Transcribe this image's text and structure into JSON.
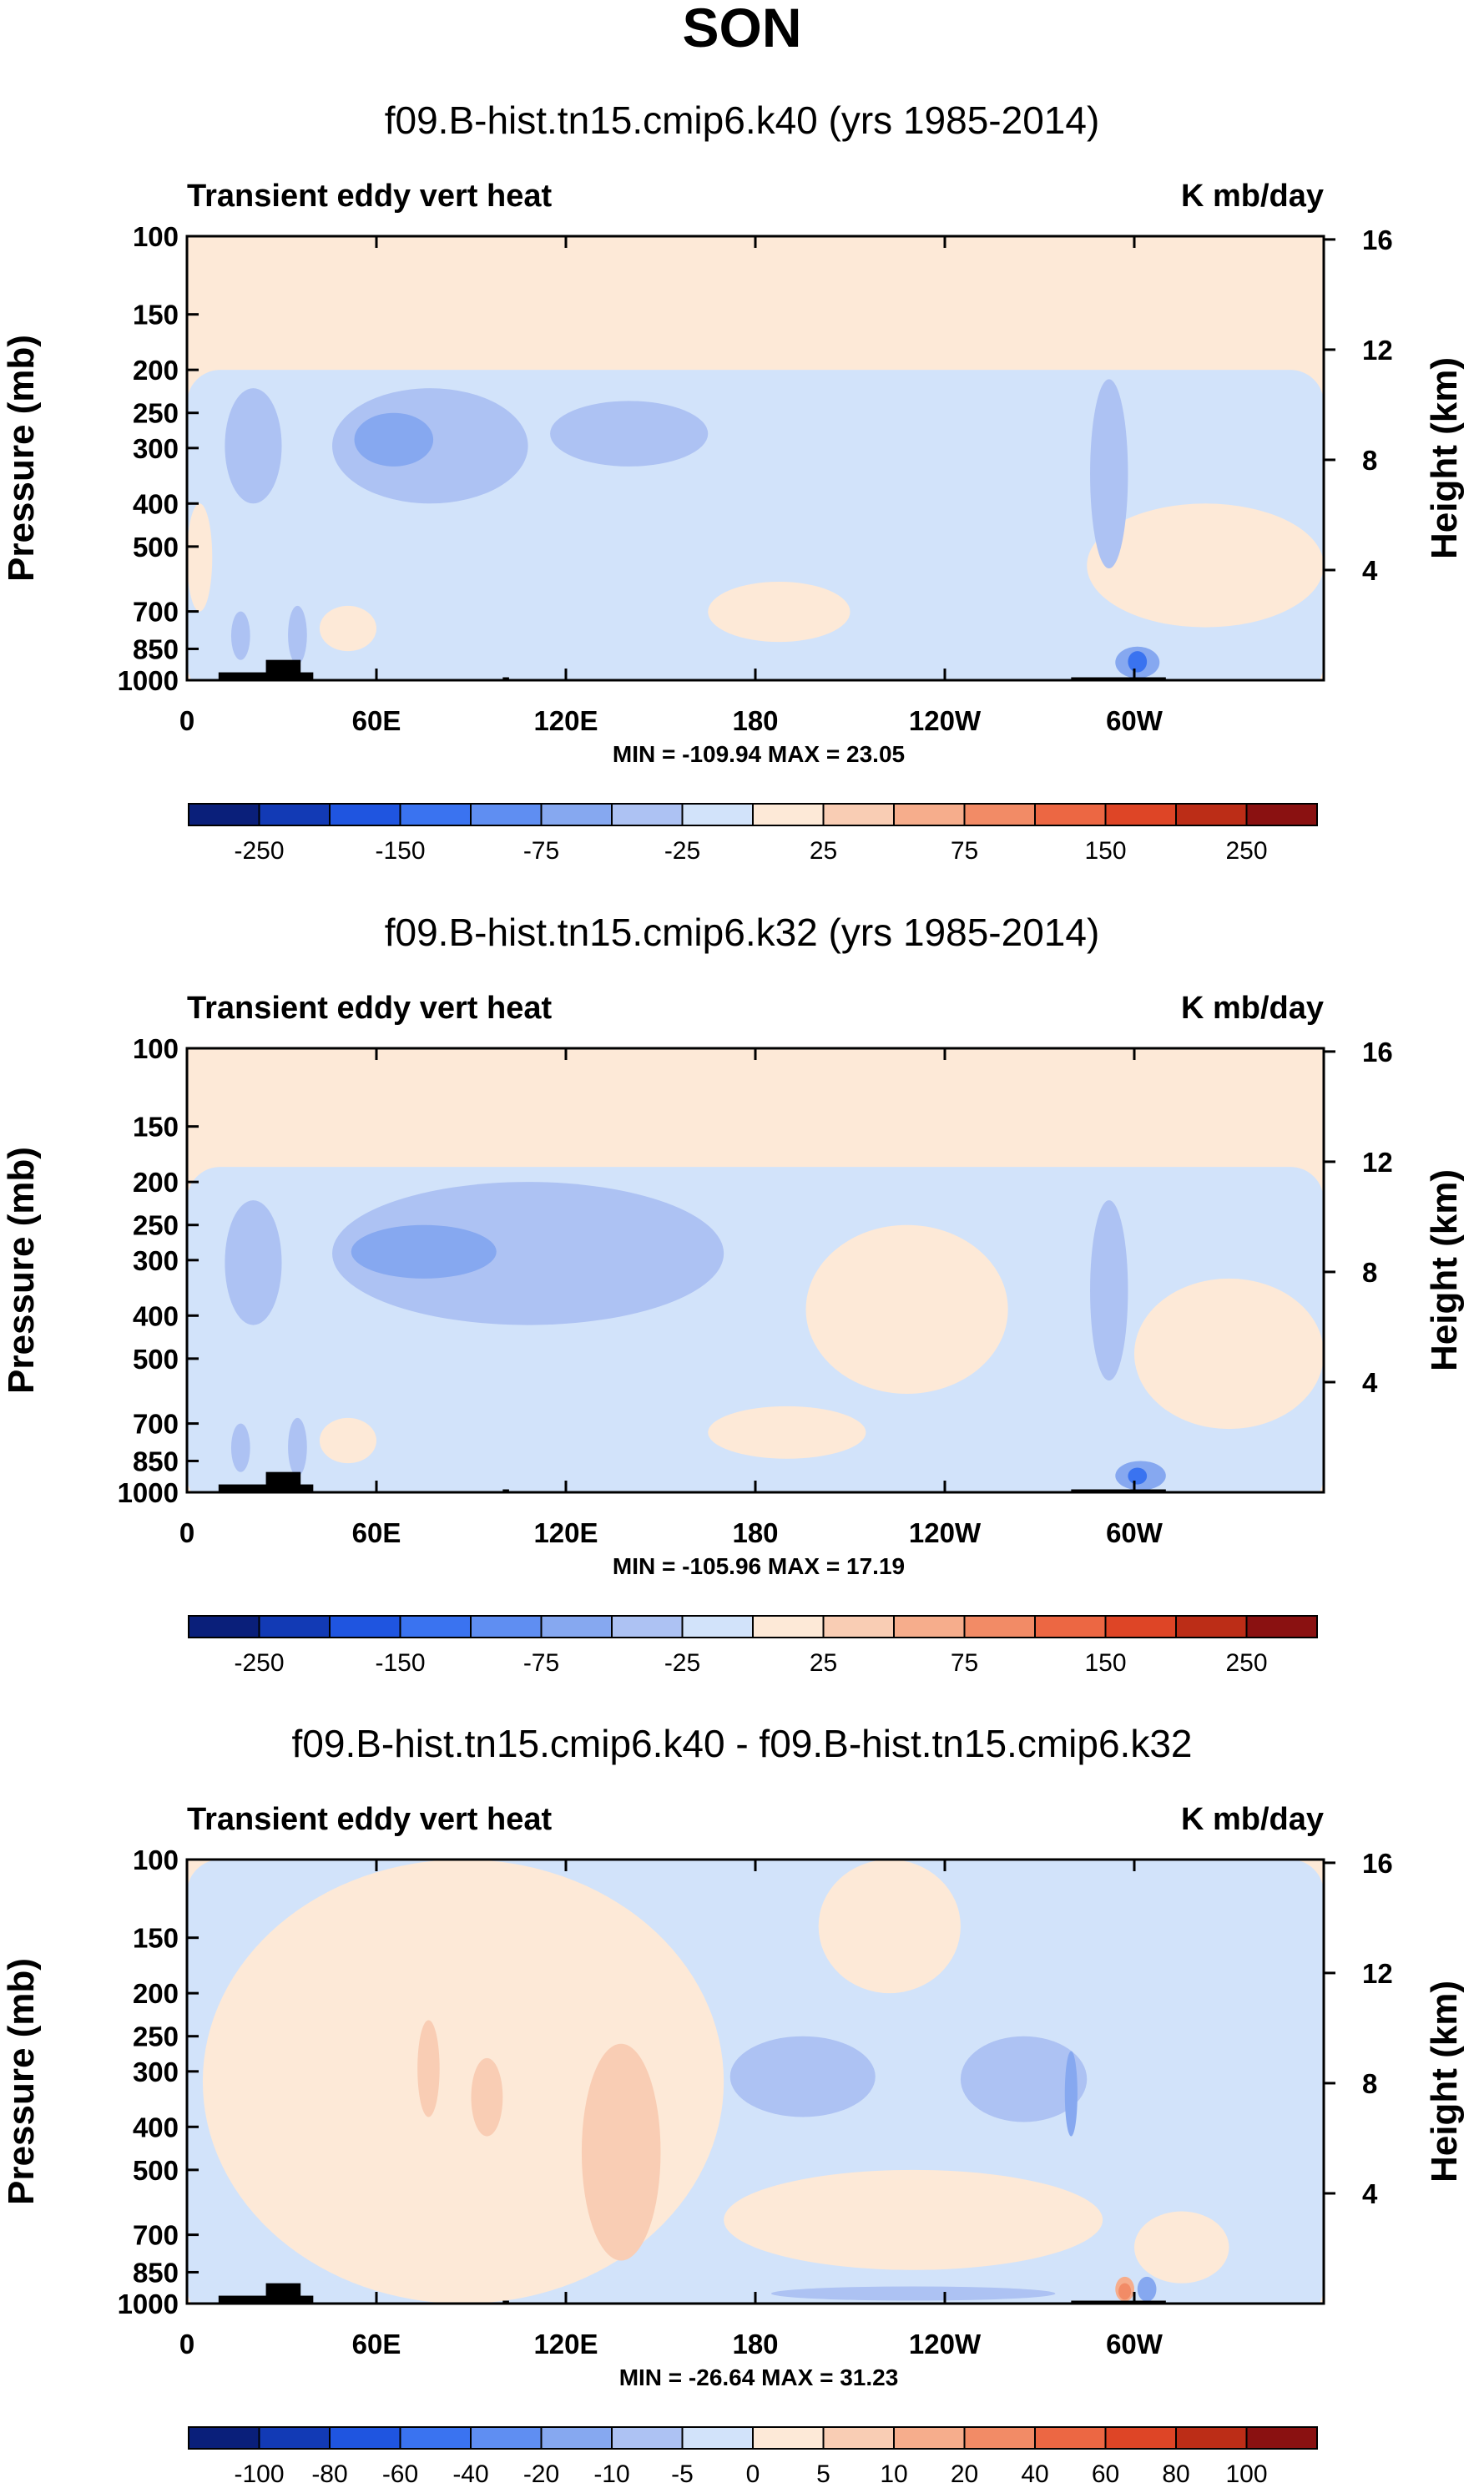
{
  "page_title": "SON",
  "colors": {
    "ax": "#000000",
    "land": "#000000",
    "default_bg": "#fde9d7"
  },
  "chart_data": [
    {
      "type": "contour",
      "title": "f09.B-hist.tn15.cmip6.k40 (yrs 1985-2014)",
      "left_label": "Transient eddy vert heat",
      "right_label": "K mb/day",
      "ylabel": "Pressure (mb)",
      "ylabel_right": "Height (km)",
      "yticks": [
        "100",
        "150",
        "200",
        "250",
        "300",
        "400",
        "500",
        "700",
        "850",
        "1000"
      ],
      "yticks_right": [
        "16",
        "12",
        "8",
        "4"
      ],
      "xticks": [
        "0",
        "60E",
        "120E",
        "180",
        "120W",
        "60W"
      ],
      "xlim": [
        0,
        360
      ],
      "stats": "MIN = -109.94  MAX =  23.05",
      "min": -109.94,
      "max": 23.05,
      "colorbar": {
        "labels": [
          "-250",
          "-150",
          "-75",
          "-25",
          "25",
          "75",
          "150",
          "250"
        ],
        "colors": [
          "#0a1f7a",
          "#123ab5",
          "#1f55e0",
          "#3a73f0",
          "#5f8ef2",
          "#86a8f0",
          "#adc2f3",
          "#d2e3fa",
          "#fde9d7",
          "#f9cdb4",
          "#f6ad8c",
          "#f28b66",
          "#ec6743",
          "#de4526",
          "#bc2d17",
          "#8a1111"
        ]
      },
      "regions": [
        {
          "cls": 7,
          "x": [
            0,
            360
          ],
          "p": [
            200,
            1000
          ]
        },
        {
          "cls": 8,
          "x": [
            0,
            8
          ],
          "p": [
            400,
            700
          ]
        },
        {
          "cls": 8,
          "x": [
            165,
            210
          ],
          "p": [
            600,
            820
          ]
        },
        {
          "cls": 8,
          "x": [
            285,
            360
          ],
          "p": [
            400,
            760
          ]
        },
        {
          "cls": 8,
          "x": [
            42,
            60
          ],
          "p": [
            680,
            860
          ]
        },
        {
          "cls": 6,
          "x": [
            12,
            30
          ],
          "p": [
            220,
            400
          ]
        },
        {
          "cls": 6,
          "x": [
            46,
            108
          ],
          "p": [
            220,
            400
          ]
        },
        {
          "cls": 6,
          "x": [
            115,
            165
          ],
          "p": [
            235,
            330
          ]
        },
        {
          "cls": 6,
          "x": [
            286,
            298
          ],
          "p": [
            210,
            560
          ]
        },
        {
          "cls": 5,
          "x": [
            53,
            78
          ],
          "p": [
            250,
            330
          ]
        },
        {
          "cls": 6,
          "x": [
            32,
            38
          ],
          "p": [
            680,
            920
          ]
        },
        {
          "cls": 6,
          "x": [
            14,
            20
          ],
          "p": [
            700,
            900
          ]
        },
        {
          "cls": 5,
          "x": [
            294,
            308
          ],
          "p": [
            840,
            990
          ]
        },
        {
          "cls": 3,
          "x": [
            298,
            304
          ],
          "p": [
            860,
            960
          ]
        }
      ],
      "land": [
        {
          "x": [
            10,
            40
          ],
          "p": [
            960,
            1000
          ]
        },
        {
          "x": [
            25,
            36
          ],
          "p": [
            900,
            1000
          ]
        },
        {
          "x": [
            100,
            102
          ],
          "p": [
            985,
            1000
          ]
        },
        {
          "x": [
            280,
            310
          ],
          "p": [
            985,
            1000
          ]
        }
      ]
    },
    {
      "type": "contour",
      "title": "f09.B-hist.tn15.cmip6.k32 (yrs 1985-2014)",
      "left_label": "Transient eddy vert heat",
      "right_label": "K mb/day",
      "ylabel": "Pressure (mb)",
      "ylabel_right": "Height (km)",
      "yticks": [
        "100",
        "150",
        "200",
        "250",
        "300",
        "400",
        "500",
        "700",
        "850",
        "1000"
      ],
      "yticks_right": [
        "16",
        "12",
        "8",
        "4"
      ],
      "xticks": [
        "0",
        "60E",
        "120E",
        "180",
        "120W",
        "60W"
      ],
      "xlim": [
        0,
        360
      ],
      "stats": "MIN = -105.96  MAX =  17.19",
      "min": -105.96,
      "max": 17.19,
      "colorbar": {
        "labels": [
          "-250",
          "-150",
          "-75",
          "-25",
          "25",
          "75",
          "150",
          "250"
        ],
        "colors": [
          "#0a1f7a",
          "#123ab5",
          "#1f55e0",
          "#3a73f0",
          "#5f8ef2",
          "#86a8f0",
          "#adc2f3",
          "#d2e3fa",
          "#fde9d7",
          "#f9cdb4",
          "#f6ad8c",
          "#f28b66",
          "#ec6743",
          "#de4526",
          "#bc2d17",
          "#8a1111"
        ]
      },
      "regions": [
        {
          "cls": 7,
          "x": [
            0,
            360
          ],
          "p": [
            185,
            1000
          ]
        },
        {
          "cls": 8,
          "x": [
            196,
            260
          ],
          "p": [
            250,
            600
          ]
        },
        {
          "cls": 8,
          "x": [
            165,
            215
          ],
          "p": [
            640,
            840
          ]
        },
        {
          "cls": 8,
          "x": [
            300,
            360
          ],
          "p": [
            330,
            720
          ]
        },
        {
          "cls": 8,
          "x": [
            42,
            60
          ],
          "p": [
            680,
            860
          ]
        },
        {
          "cls": 6,
          "x": [
            12,
            30
          ],
          "p": [
            220,
            420
          ]
        },
        {
          "cls": 6,
          "x": [
            46,
            170
          ],
          "p": [
            200,
            420
          ]
        },
        {
          "cls": 5,
          "x": [
            52,
            98
          ],
          "p": [
            250,
            330
          ]
        },
        {
          "cls": 6,
          "x": [
            286,
            298
          ],
          "p": [
            220,
            560
          ]
        },
        {
          "cls": 6,
          "x": [
            32,
            38
          ],
          "p": [
            680,
            920
          ]
        },
        {
          "cls": 6,
          "x": [
            14,
            20
          ],
          "p": [
            700,
            900
          ]
        },
        {
          "cls": 5,
          "x": [
            294,
            310
          ],
          "p": [
            850,
            990
          ]
        },
        {
          "cls": 3,
          "x": [
            298,
            304
          ],
          "p": [
            880,
            960
          ]
        }
      ],
      "land": [
        {
          "x": [
            10,
            40
          ],
          "p": [
            960,
            1000
          ]
        },
        {
          "x": [
            25,
            36
          ],
          "p": [
            900,
            1000
          ]
        },
        {
          "x": [
            100,
            102
          ],
          "p": [
            985,
            1000
          ]
        },
        {
          "x": [
            280,
            310
          ],
          "p": [
            985,
            1000
          ]
        }
      ]
    },
    {
      "type": "contour",
      "title": "f09.B-hist.tn15.cmip6.k40 - f09.B-hist.tn15.cmip6.k32",
      "left_label": "Transient eddy vert heat",
      "right_label": "K mb/day",
      "ylabel": "Pressure (mb)",
      "ylabel_right": "Height (km)",
      "yticks": [
        "100",
        "150",
        "200",
        "250",
        "300",
        "400",
        "500",
        "700",
        "850",
        "1000"
      ],
      "yticks_right": [
        "16",
        "12",
        "8",
        "4"
      ],
      "xticks": [
        "0",
        "60E",
        "120E",
        "180",
        "120W",
        "60W"
      ],
      "xlim": [
        0,
        360
      ],
      "stats": "MIN = -26.64  MAX =  31.23",
      "min": -26.64,
      "max": 31.23,
      "colorbar": {
        "labels": [
          "-100",
          "-80",
          "-60",
          "-40",
          "-20",
          "-10",
          "-5",
          "0",
          "5",
          "10",
          "20",
          "40",
          "60",
          "80",
          "100"
        ],
        "colors": [
          "#0a1f7a",
          "#123ab5",
          "#1f55e0",
          "#3a73f0",
          "#5f8ef2",
          "#86a8f0",
          "#adc2f3",
          "#d2e3fa",
          "#fde9d7",
          "#f9cdb4",
          "#f6ad8c",
          "#f28b66",
          "#ec6743",
          "#de4526",
          "#bc2d17",
          "#8a1111"
        ]
      },
      "regions": [
        {
          "cls": 7,
          "x": [
            0,
            360
          ],
          "p": [
            100,
            1000
          ]
        },
        {
          "cls": 8,
          "x": [
            5,
            170
          ],
          "p": [
            100,
            1000
          ]
        },
        {
          "cls": 8,
          "x": [
            170,
            290
          ],
          "p": [
            500,
            840
          ]
        },
        {
          "cls": 8,
          "x": [
            200,
            245
          ],
          "p": [
            100,
            200
          ]
        },
        {
          "cls": 8,
          "x": [
            300,
            330
          ],
          "p": [
            620,
            900
          ]
        },
        {
          "cls": 9,
          "x": [
            73,
            80
          ],
          "p": [
            230,
            380
          ]
        },
        {
          "cls": 9,
          "x": [
            125,
            150
          ],
          "p": [
            260,
            800
          ]
        },
        {
          "cls": 9,
          "x": [
            90,
            100
          ],
          "p": [
            280,
            420
          ]
        },
        {
          "cls": 6,
          "x": [
            172,
            218
          ],
          "p": [
            250,
            380
          ]
        },
        {
          "cls": 6,
          "x": [
            245,
            285
          ],
          "p": [
            250,
            390
          ]
        },
        {
          "cls": 5,
          "x": [
            278,
            282
          ],
          "p": [
            270,
            420
          ]
        },
        {
          "cls": 6,
          "x": [
            185,
            275
          ],
          "p": [
            915,
            985
          ]
        },
        {
          "cls": 10,
          "x": [
            294,
            300
          ],
          "p": [
            870,
            990
          ]
        },
        {
          "cls": 11,
          "x": [
            295,
            299
          ],
          "p": [
            900,
            980
          ]
        },
        {
          "cls": 5,
          "x": [
            301,
            307
          ],
          "p": [
            870,
            990
          ]
        }
      ],
      "land": [
        {
          "x": [
            10,
            40
          ],
          "p": [
            960,
            1000
          ]
        },
        {
          "x": [
            25,
            36
          ],
          "p": [
            900,
            1000
          ]
        },
        {
          "x": [
            100,
            102
          ],
          "p": [
            985,
            1000
          ]
        },
        {
          "x": [
            280,
            310
          ],
          "p": [
            985,
            1000
          ]
        }
      ]
    }
  ]
}
